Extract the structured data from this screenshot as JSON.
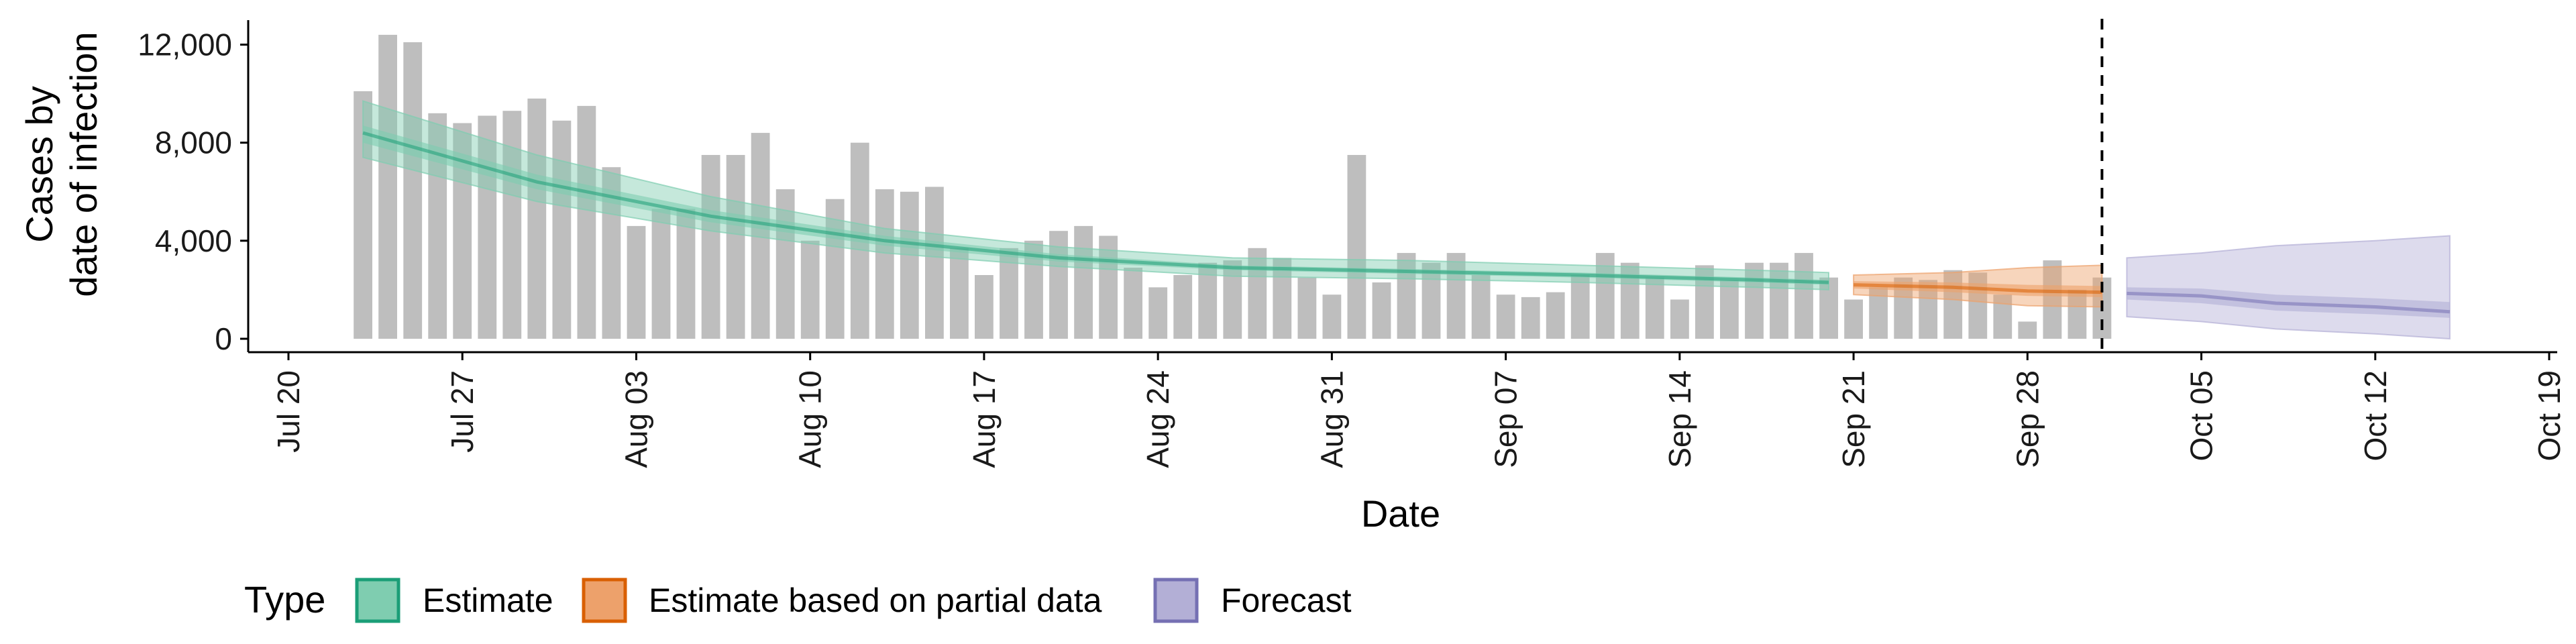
{
  "chart_data": {
    "type": "bar",
    "xlabel": "Date",
    "ylabel_lines": [
      "Cases by",
      "date of infection"
    ],
    "ylim": [
      0,
      13000
    ],
    "yticks": [
      0,
      4000,
      8000,
      12000
    ],
    "ytick_labels": [
      "0",
      "4,000",
      "8,000",
      "12,000"
    ],
    "xlim": [
      "2020-07-20",
      "2020-10-19"
    ],
    "xticks": [
      "2020-07-20",
      "2020-07-27",
      "2020-08-03",
      "2020-08-10",
      "2020-08-17",
      "2020-08-24",
      "2020-08-31",
      "2020-09-07",
      "2020-09-14",
      "2020-09-21",
      "2020-09-28",
      "2020-10-05",
      "2020-10-12",
      "2020-10-19"
    ],
    "xtick_labels": [
      "Jul 20",
      "Jul 27",
      "Aug 03",
      "Aug 10",
      "Aug 17",
      "Aug 24",
      "Aug 31",
      "Sep 07",
      "Sep 14",
      "Sep 21",
      "Sep 28",
      "Oct 05",
      "Oct 12",
      "Oct 19"
    ],
    "forecast_date": "2020-10-01",
    "grid": false,
    "bars": {
      "start_date": "2020-07-23",
      "values": [
        10100,
        12400,
        12100,
        9200,
        8800,
        9100,
        9300,
        9800,
        8900,
        9500,
        7000,
        4600,
        5300,
        5300,
        7500,
        7500,
        8400,
        6100,
        4000,
        5700,
        8000,
        6100,
        6000,
        6200,
        3700,
        2600,
        3700,
        4000,
        4400,
        4600,
        4200,
        2900,
        2100,
        2600,
        3100,
        3200,
        3700,
        3300,
        2500,
        1800,
        7500,
        2300,
        3500,
        3100,
        3500,
        2600,
        1800,
        1700,
        1900,
        2600,
        3500,
        3100,
        2500,
        1600,
        3000,
        2400,
        3100,
        3100,
        3500,
        2500,
        1600,
        2100,
        2500,
        2400,
        2800,
        2700,
        1800,
        700,
        3200,
        2000,
        2500
      ],
      "color": "#bebebe"
    },
    "series": [
      {
        "name": "Estimate",
        "color": "#1b9e77",
        "fill": "#7fcdb0",
        "x": [
          "2020-07-23",
          "2020-07-30",
          "2020-08-06",
          "2020-08-13",
          "2020-08-20",
          "2020-08-27",
          "2020-09-03",
          "2020-09-10",
          "2020-09-17",
          "2020-09-20"
        ],
        "median": [
          8400,
          6400,
          5000,
          4000,
          3300,
          2900,
          2750,
          2600,
          2400,
          2300
        ],
        "lower50": [
          8000,
          6100,
          4750,
          3800,
          3150,
          2800,
          2650,
          2500,
          2300,
          2200
        ],
        "upper50": [
          8700,
          6700,
          5250,
          4200,
          3450,
          3000,
          2850,
          2700,
          2500,
          2400
        ],
        "lower90": [
          7400,
          5600,
          4400,
          3500,
          2950,
          2550,
          2450,
          2300,
          2100,
          2000
        ],
        "upper90": [
          9700,
          7500,
          5800,
          4500,
          3750,
          3300,
          3200,
          3000,
          2800,
          2700
        ]
      },
      {
        "name": "Estimate based on partial data",
        "color": "#d95f02",
        "fill": "#eda16b",
        "x": [
          "2020-09-21",
          "2020-09-25",
          "2020-09-28",
          "2020-10-01"
        ],
        "median": [
          2200,
          2100,
          1950,
          1900
        ],
        "lower50": [
          2050,
          1900,
          1750,
          1700
        ],
        "upper50": [
          2350,
          2300,
          2200,
          2150
        ],
        "lower90": [
          1800,
          1600,
          1350,
          1300
        ],
        "upper90": [
          2600,
          2700,
          2900,
          3000
        ]
      },
      {
        "name": "Forecast",
        "color": "#7570b3",
        "fill": "#b3afd6",
        "x": [
          "2020-10-02",
          "2020-10-05",
          "2020-10-08",
          "2020-10-12",
          "2020-10-15"
        ],
        "median": [
          1850,
          1750,
          1450,
          1300,
          1100
        ],
        "lower50": [
          1600,
          1450,
          1150,
          1000,
          850
        ],
        "upper50": [
          2100,
          2050,
          1800,
          1650,
          1500
        ],
        "lower90": [
          900,
          700,
          400,
          200,
          0
        ],
        "upper90": [
          3300,
          3500,
          3800,
          4000,
          4200
        ]
      }
    ],
    "legend": {
      "title": "Type",
      "position": "bottom",
      "items": [
        "Estimate",
        "Estimate based on partial data",
        "Forecast"
      ]
    }
  }
}
